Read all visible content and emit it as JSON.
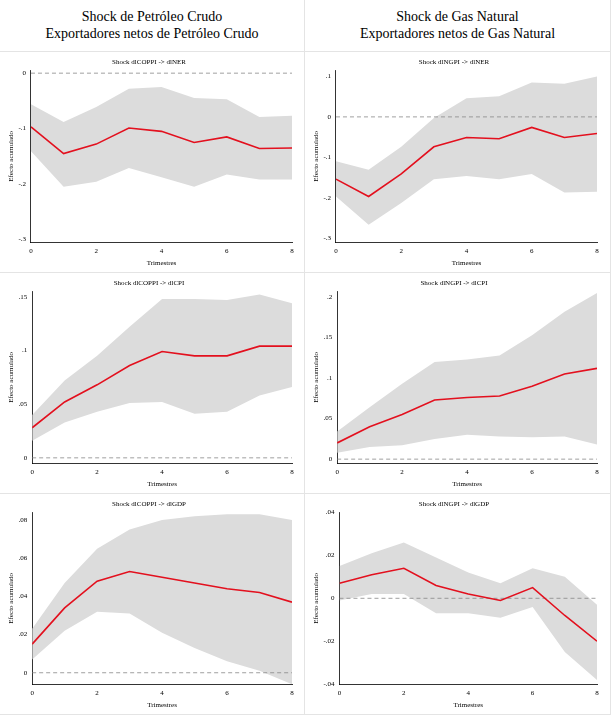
{
  "column_headers": [
    [
      "Shock de Petróleo Crudo",
      "Exportadores netos de Petróleo Crudo"
    ],
    [
      "Shock de Gas Natural",
      "Exportadores netos de Gas Natural"
    ]
  ],
  "chart_data": [
    {
      "type": "line",
      "title": "Shock dlCOPPI -> dlNER",
      "x_label": "Trimestres",
      "y_label": "Efecto acumulado",
      "x": [
        0,
        1,
        2,
        3,
        4,
        5,
        6,
        7,
        8
      ],
      "xlim": [
        0,
        8
      ],
      "xticks": [
        0,
        2,
        4,
        6,
        8
      ],
      "ylim": [
        -0.305,
        0.005
      ],
      "yticks": [
        {
          "value": -0.3,
          "label": "-.3"
        },
        {
          "value": -0.2,
          "label": "-.2"
        },
        {
          "value": -0.1,
          "label": "-.1"
        },
        0
      ],
      "grid": false,
      "reference_line": {
        "value": 0,
        "line_style": "dashed",
        "color": "#888888"
      },
      "band_color": "#dcdcdc",
      "series": [
        {
          "color": "#e3101e",
          "values": [
            -0.097,
            -0.145,
            -0.128,
            -0.099,
            -0.105,
            -0.125,
            -0.115,
            -0.136,
            -0.135
          ],
          "lower": [
            -0.141,
            -0.205,
            -0.196,
            -0.171,
            -0.188,
            -0.205,
            -0.183,
            -0.192,
            -0.192
          ],
          "upper": [
            -0.056,
            -0.088,
            -0.061,
            -0.028,
            -0.025,
            -0.045,
            -0.047,
            -0.079,
            -0.077
          ]
        }
      ]
    },
    {
      "type": "line",
      "title": "Shock dlNGPI -> dlNER",
      "x_label": "Trimestres",
      "y_label": "Efecto acumulado",
      "x": [
        0,
        1,
        2,
        3,
        4,
        5,
        6,
        7,
        8
      ],
      "xlim": [
        0,
        8
      ],
      "xticks": [
        0,
        2,
        4,
        6,
        8
      ],
      "ylim": [
        -0.31,
        0.115
      ],
      "yticks": [
        {
          "value": -0.3,
          "label": "-.3"
        },
        {
          "value": -0.2,
          "label": "-.2"
        },
        {
          "value": -0.1,
          "label": "-.1"
        },
        0,
        {
          "value": 0.1,
          "label": ".1"
        }
      ],
      "grid": false,
      "reference_line": {
        "value": 0,
        "line_style": "dashed",
        "color": "#888888"
      },
      "band_color": "#dcdcdc",
      "series": [
        {
          "color": "#e3101e",
          "values": [
            -0.154,
            -0.197,
            -0.141,
            -0.074,
            -0.051,
            -0.054,
            -0.026,
            -0.051,
            -0.041
          ],
          "lower": [
            -0.197,
            -0.267,
            -0.213,
            -0.154,
            -0.146,
            -0.154,
            -0.141,
            -0.187,
            -0.185
          ],
          "upper": [
            -0.11,
            -0.131,
            -0.074,
            -0.003,
            0.046,
            0.051,
            0.085,
            0.082,
            0.1
          ]
        }
      ]
    },
    {
      "type": "line",
      "title": "Shock dlCOPPI -> dlCPI",
      "x_label": "Trimestres",
      "y_label": "Efecto acumulado",
      "x": [
        0,
        1,
        2,
        3,
        4,
        5,
        6,
        7,
        8
      ],
      "xlim": [
        0,
        8
      ],
      "xticks": [
        0,
        2,
        4,
        6,
        8
      ],
      "ylim": [
        -0.005,
        0.155
      ],
      "yticks": [
        0,
        {
          "value": 0.05,
          "label": ".05"
        },
        {
          "value": 0.1,
          "label": ".1"
        },
        {
          "value": 0.15,
          "label": ".15"
        }
      ],
      "grid": false,
      "reference_line": {
        "value": 0,
        "line_style": "dashed",
        "color": "#888888"
      },
      "band_color": "#dcdcdc",
      "series": [
        {
          "color": "#e3101e",
          "values": [
            0.028,
            0.052,
            0.068,
            0.086,
            0.099,
            0.095,
            0.095,
            0.104,
            0.104
          ],
          "lower": [
            0.016,
            0.033,
            0.043,
            0.051,
            0.052,
            0.041,
            0.043,
            0.058,
            0.066
          ],
          "upper": [
            0.04,
            0.072,
            0.095,
            0.122,
            0.148,
            0.148,
            0.147,
            0.152,
            0.144
          ]
        }
      ]
    },
    {
      "type": "line",
      "title": "Shock dlNGPI -> dlCPI",
      "x_label": "Trimestres",
      "y_label": "Efecto acumulado",
      "x": [
        0,
        1,
        2,
        3,
        4,
        5,
        6,
        7,
        8
      ],
      "xlim": [
        0,
        8
      ],
      "xticks": [
        0,
        2,
        4,
        6,
        8
      ],
      "ylim": [
        -0.005,
        0.207
      ],
      "yticks": [
        0,
        {
          "value": 0.05,
          "label": ".05"
        },
        {
          "value": 0.1,
          "label": ".1"
        },
        {
          "value": 0.15,
          "label": ".15"
        },
        {
          "value": 0.2,
          "label": ".2"
        }
      ],
      "grid": false,
      "reference_line": {
        "value": 0,
        "line_style": "dashed",
        "color": "#888888"
      },
      "band_color": "#dcdcdc",
      "series": [
        {
          "color": "#e3101e",
          "values": [
            0.02,
            0.04,
            0.055,
            0.073,
            0.076,
            0.078,
            0.09,
            0.105,
            0.112
          ],
          "lower": [
            0.008,
            0.015,
            0.017,
            0.025,
            0.03,
            0.028,
            0.027,
            0.028,
            0.018
          ],
          "upper": [
            0.034,
            0.064,
            0.093,
            0.12,
            0.123,
            0.128,
            0.153,
            0.182,
            0.205
          ]
        }
      ]
    },
    {
      "type": "line",
      "title": "Shock dlCOPPI -> dlGDP",
      "x_label": "Trimestres",
      "y_label": "Efecto acumulado",
      "x": [
        0,
        1,
        2,
        3,
        4,
        5,
        6,
        7,
        8
      ],
      "xlim": [
        0,
        8
      ],
      "xticks": [
        0,
        2,
        4,
        6,
        8
      ],
      "ylim": [
        -0.006,
        0.084
      ],
      "yticks": [
        0,
        {
          "value": 0.02,
          "label": ".02"
        },
        {
          "value": 0.04,
          "label": ".04"
        },
        {
          "value": 0.06,
          "label": ".06"
        },
        {
          "value": 0.08,
          "label": ".08"
        }
      ],
      "grid": false,
      "reference_line": {
        "value": 0,
        "line_style": "dashed",
        "color": "#888888"
      },
      "band_color": "#dcdcdc",
      "series": [
        {
          "color": "#e3101e",
          "values": [
            0.015,
            0.034,
            0.048,
            0.053,
            0.05,
            0.047,
            0.044,
            0.042,
            0.037
          ],
          "lower": [
            0.007,
            0.022,
            0.032,
            0.031,
            0.021,
            0.013,
            0.006,
            0.001,
            -0.006
          ],
          "upper": [
            0.023,
            0.047,
            0.065,
            0.075,
            0.08,
            0.082,
            0.083,
            0.083,
            0.08
          ]
        }
      ]
    },
    {
      "type": "line",
      "title": "Shock dlNGPI -> dlGDP",
      "x_label": "Trimestres",
      "y_label": "Efecto acumulado",
      "x": [
        0,
        1,
        2,
        3,
        4,
        5,
        6,
        7,
        8
      ],
      "xlim": [
        0,
        8
      ],
      "xticks": [
        0,
        2,
        4,
        6,
        8
      ],
      "ylim": [
        -0.04,
        0.04
      ],
      "yticks": [
        {
          "value": -0.04,
          "label": "-.04"
        },
        {
          "value": -0.02,
          "label": "-.02"
        },
        0,
        {
          "value": 0.02,
          "label": ".02"
        },
        {
          "value": 0.04,
          "label": ".04"
        }
      ],
      "grid": false,
      "reference_line": {
        "value": 0,
        "line_style": "dashed",
        "color": "#888888"
      },
      "band_color": "#dcdcdc",
      "series": [
        {
          "color": "#e3101e",
          "values": [
            0.007,
            0.011,
            0.014,
            0.006,
            0.002,
            -0.001,
            0.005,
            -0.008,
            -0.02
          ],
          "lower": [
            -0.001,
            0.002,
            0.002,
            -0.007,
            -0.007,
            -0.009,
            -0.004,
            -0.025,
            -0.038
          ],
          "upper": [
            0.015,
            0.021,
            0.026,
            0.019,
            0.012,
            0.007,
            0.014,
            0.01,
            -0.003
          ]
        }
      ]
    }
  ]
}
